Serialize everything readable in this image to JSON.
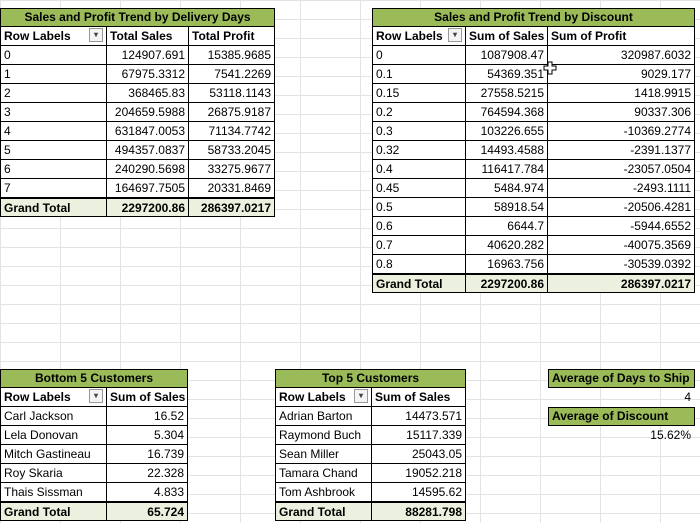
{
  "delivery": {
    "title": "Sales and Profit Trend by Delivery Days",
    "headers": [
      "Row Labels",
      "Total Sales",
      "Total Profit"
    ],
    "rows": [
      [
        "0",
        "124907.691",
        "15385.9685"
      ],
      [
        "1",
        "67975.3312",
        "7541.2269"
      ],
      [
        "2",
        "368465.83",
        "53118.1143"
      ],
      [
        "3",
        "204659.5988",
        "26875.9187"
      ],
      [
        "4",
        "631847.0053",
        "71134.7742"
      ],
      [
        "5",
        "494357.0837",
        "58733.2045"
      ],
      [
        "6",
        "240290.5698",
        "33275.9677"
      ],
      [
        "7",
        "164697.7505",
        "20331.8469"
      ]
    ],
    "total": [
      "Grand Total",
      "2297200.86",
      "286397.0217"
    ]
  },
  "discount": {
    "title": "Sales and Profit Trend by Discount",
    "headers": [
      "Row Labels",
      "Sum of Sales",
      "Sum of Profit"
    ],
    "rows": [
      [
        "0",
        "1087908.47",
        "320987.6032"
      ],
      [
        "0.1",
        "54369.351",
        "9029.177"
      ],
      [
        "0.15",
        "27558.5215",
        "1418.9915"
      ],
      [
        "0.2",
        "764594.368",
        "90337.306"
      ],
      [
        "0.3",
        "103226.655",
        "-10369.2774"
      ],
      [
        "0.32",
        "14493.4588",
        "-2391.1377"
      ],
      [
        "0.4",
        "116417.784",
        "-23057.0504"
      ],
      [
        "0.45",
        "5484.974",
        "-2493.1111"
      ],
      [
        "0.5",
        "58918.54",
        "-20506.4281"
      ],
      [
        "0.6",
        "6644.7",
        "-5944.6552"
      ],
      [
        "0.7",
        "40620.282",
        "-40075.3569"
      ],
      [
        "0.8",
        "16963.756",
        "-30539.0392"
      ]
    ],
    "total": [
      "Grand Total",
      "2297200.86",
      "286397.0217"
    ]
  },
  "bottom5": {
    "title": "Bottom 5 Customers",
    "headers": [
      "Row Labels",
      "Sum of Sales"
    ],
    "rows": [
      [
        "Carl Jackson",
        "16.52"
      ],
      [
        "Lela Donovan",
        "5.304"
      ],
      [
        "Mitch Gastineau",
        "16.739"
      ],
      [
        "Roy Skaria",
        "22.328"
      ],
      [
        "Thais Sissman",
        "4.833"
      ]
    ],
    "total": [
      "Grand Total",
      "65.724"
    ]
  },
  "top5": {
    "title": "Top 5 Customers",
    "headers": [
      "Row Labels",
      "Sum of Sales"
    ],
    "rows": [
      [
        "Adrian Barton",
        "14473.571"
      ],
      [
        "Raymond Buch",
        "15117.339"
      ],
      [
        "Sean Miller",
        "25043.05"
      ],
      [
        "Tamara Chand",
        "19052.218"
      ],
      [
        "Tom Ashbrook",
        "14595.62"
      ]
    ],
    "total": [
      "Grand Total",
      "88281.798"
    ]
  },
  "kpis": {
    "days_title": "Average of Days to Ship",
    "days_value": "4",
    "discount_title": "Average of Discount",
    "discount_value": "15.62%"
  },
  "colors": {
    "header_green": "#9bbb59",
    "total_fill": "#ebf1de"
  },
  "icons": {
    "filter": "filter-dropdown-icon",
    "cursor": "plus-cursor-icon"
  }
}
